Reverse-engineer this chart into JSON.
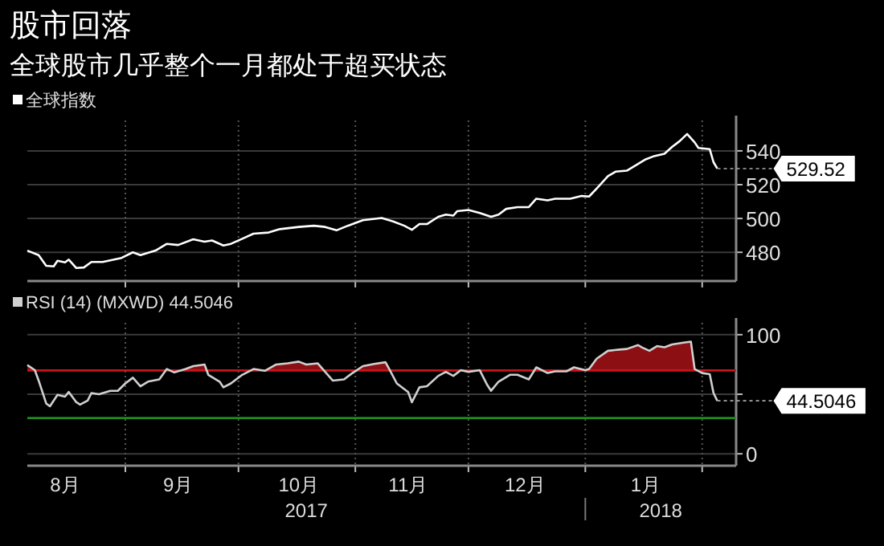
{
  "chart_data": [
    {
      "type": "line",
      "title": "股市回落",
      "subtitle": "全球股市几乎整个一月都处于超买状态",
      "legend": "top left",
      "grid": true,
      "tick_labels": "y",
      "xlim": [
        "2017-08-06",
        "2018-02-10"
      ],
      "ylim": [
        463,
        558
      ],
      "yticks": [
        480,
        500,
        520,
        540
      ],
      "xticks": [
        {
          "value": "2017-09-01",
          "label": null
        },
        {
          "value": "2017-10-01",
          "label": null
        },
        {
          "value": "2017-11-01",
          "label": null
        },
        {
          "value": "2017-12-01",
          "label": null
        },
        {
          "value": "2018-01-01",
          "label": null
        },
        {
          "value": "2018-02-01",
          "label": null
        }
      ],
      "annotations": [
        {
          "text": "529.52",
          "x": "2018-02-05",
          "y": 529.52
        }
      ],
      "series": [
        {
          "name": "全球指数",
          "color": "#ffffff",
          "x": [
            "2017-08-06",
            "2017-08-09",
            "2017-08-11",
            "2017-08-13",
            "2017-08-14",
            "2017-08-16",
            "2017-08-17",
            "2017-08-19",
            "2017-08-21",
            "2017-08-23",
            "2017-08-26",
            "2017-08-29",
            "2017-08-31",
            "2017-09-03",
            "2017-09-05",
            "2017-09-09",
            "2017-09-12",
            "2017-09-15",
            "2017-09-19",
            "2017-09-22",
            "2017-09-24",
            "2017-09-27",
            "2017-09-29",
            "2017-10-02",
            "2017-10-05",
            "2017-10-09",
            "2017-10-12",
            "2017-10-17",
            "2017-10-21",
            "2017-10-24",
            "2017-10-27",
            "2017-10-30",
            "2017-11-03",
            "2017-11-08",
            "2017-11-11",
            "2017-11-14",
            "2017-11-16",
            "2017-11-18",
            "2017-11-20",
            "2017-11-23",
            "2017-11-25",
            "2017-11-27",
            "2017-11-28",
            "2017-12-01",
            "2017-12-04",
            "2017-12-07",
            "2017-12-09",
            "2017-12-11",
            "2017-12-14",
            "2017-12-17",
            "2017-12-19",
            "2017-12-22",
            "2017-12-24",
            "2017-12-28",
            "2017-12-31",
            "2018-01-02",
            "2018-01-04",
            "2018-01-07",
            "2018-01-09",
            "2018-01-12",
            "2018-01-15",
            "2018-01-17",
            "2018-01-19",
            "2018-01-22",
            "2018-01-24",
            "2018-01-26",
            "2018-01-28",
            "2018-01-30",
            "2018-01-31",
            "2018-02-03",
            "2018-02-04",
            "2018-02-05"
          ],
          "values": [
            481,
            478.3,
            472,
            471.7,
            475,
            474,
            475.7,
            470.7,
            471,
            474.3,
            474.3,
            475.7,
            476.7,
            480,
            478.3,
            481,
            485,
            484.3,
            487.7,
            486.3,
            487,
            484,
            485,
            488,
            491,
            491.7,
            493.7,
            495,
            495.7,
            495,
            493,
            495.7,
            499,
            500.3,
            498.3,
            495.7,
            493.3,
            496.7,
            496.7,
            501,
            502.3,
            501.7,
            504.3,
            505,
            503.3,
            501,
            502.3,
            505.7,
            506.7,
            506.7,
            511.7,
            510.7,
            511.7,
            511.7,
            513.3,
            513,
            517.7,
            525,
            527.7,
            528.3,
            532.3,
            535,
            536.7,
            538.3,
            542.3,
            545.7,
            550,
            545,
            541.7,
            541,
            533.3,
            529.52
          ]
        }
      ]
    },
    {
      "type": "line",
      "legend": "top left",
      "grid": true,
      "xlim": [
        "2017-08-06",
        "2018-02-10"
      ],
      "ylim": [
        -10,
        110
      ],
      "yticks": [
        0,
        {
          "value": 50,
          "label": null
        },
        100
      ],
      "xticks": [
        {
          "value": "2017-08-16",
          "label": "8月"
        },
        {
          "value": "2017-09-01",
          "label": null
        },
        {
          "value": "2017-09-15",
          "label": "9月"
        },
        {
          "value": "2017-10-01",
          "label": null
        },
        {
          "value": "2017-10-17",
          "label": "10月"
        },
        {
          "value": "2017-11-01",
          "label": null
        },
        {
          "value": "2017-11-15",
          "label": "11月"
        },
        {
          "value": "2017-12-01",
          "label": null
        },
        {
          "value": "2017-12-16",
          "label": "12月"
        },
        {
          "value": "2018-01-01",
          "label": null
        },
        {
          "value": "2018-01-17",
          "label": "1月"
        },
        {
          "value": "2018-02-01",
          "label": null
        }
      ],
      "ref_lines": [
        {
          "axis": "y",
          "value": 70,
          "color": "#c8161d"
        },
        {
          "axis": "y",
          "value": 30,
          "color": "#1e8c1e"
        }
      ],
      "annotations": [
        {
          "text": "44.5046",
          "x": "2018-02-05",
          "y": 44.5046
        },
        "2017",
        "2018"
      ],
      "series": [
        {
          "name": "RSI (14) (MXWD) 44.5046",
          "color": "#d0d0d0",
          "x": [
            "2017-08-06",
            "2017-08-08",
            "2017-08-09",
            "2017-08-11",
            "2017-08-12",
            "2017-08-14",
            "2017-08-16",
            "2017-08-17",
            "2017-08-19",
            "2017-08-20",
            "2017-08-22",
            "2017-08-23",
            "2017-08-25",
            "2017-08-28",
            "2017-08-30",
            "2017-09-01",
            "2017-09-03",
            "2017-09-05",
            "2017-09-07",
            "2017-09-10",
            "2017-09-12",
            "2017-09-14",
            "2017-09-17",
            "2017-09-19",
            "2017-09-22",
            "2017-09-23",
            "2017-09-26",
            "2017-09-27",
            "2017-09-29",
            "2017-10-02",
            "2017-10-05",
            "2017-10-08",
            "2017-10-11",
            "2017-10-14",
            "2017-10-17",
            "2017-10-19",
            "2017-10-22",
            "2017-10-24",
            "2017-10-26",
            "2017-10-29",
            "2017-10-31",
            "2017-11-03",
            "2017-11-06",
            "2017-11-09",
            "2017-11-10",
            "2017-11-12",
            "2017-11-15",
            "2017-11-16",
            "2017-11-18",
            "2017-11-20",
            "2017-11-23",
            "2017-11-25",
            "2017-11-27",
            "2017-11-29",
            "2017-12-01",
            "2017-12-04",
            "2017-12-06",
            "2017-12-07",
            "2017-12-09",
            "2017-12-12",
            "2017-12-14",
            "2017-12-17",
            "2017-12-19",
            "2017-12-22",
            "2017-12-24",
            "2017-12-27",
            "2017-12-29",
            "2018-01-01",
            "2018-01-02",
            "2018-01-04",
            "2018-01-07",
            "2018-01-10",
            "2018-01-12",
            "2018-01-15",
            "2018-01-16",
            "2018-01-18",
            "2018-01-20",
            "2018-01-22",
            "2018-01-24",
            "2018-01-27",
            "2018-01-29",
            "2018-01-30",
            "2018-02-01",
            "2018-02-03",
            "2018-02-04",
            "2018-02-05"
          ],
          "values": [
            74.5,
            70.2,
            61.5,
            42.3,
            39.9,
            49.5,
            48,
            51.9,
            43.3,
            41.3,
            44.7,
            51,
            50,
            52.9,
            52.9,
            59.1,
            63.9,
            56.7,
            60.6,
            62.5,
            71.2,
            68.3,
            71.2,
            73.6,
            75,
            66.3,
            60.6,
            55.8,
            59.1,
            66.3,
            71.2,
            69.7,
            75,
            76,
            77.4,
            75,
            76,
            68.8,
            61.5,
            62.5,
            67.3,
            73.6,
            75.5,
            76.9,
            71.2,
            59.1,
            51.9,
            43.3,
            55.8,
            56.7,
            65.4,
            68.8,
            65.4,
            70.2,
            68.8,
            70.2,
            57.7,
            52.9,
            60.6,
            66.3,
            66.3,
            62.5,
            72.6,
            67.8,
            69.2,
            69.2,
            72.6,
            70.2,
            71.2,
            79.8,
            86.5,
            87.5,
            88,
            91.3,
            89.4,
            86.5,
            90.4,
            89.4,
            91.8,
            93.3,
            94.2,
            71.2,
            67.8,
            66.9,
            51,
            44.5046
          ]
        }
      ]
    }
  ]
}
